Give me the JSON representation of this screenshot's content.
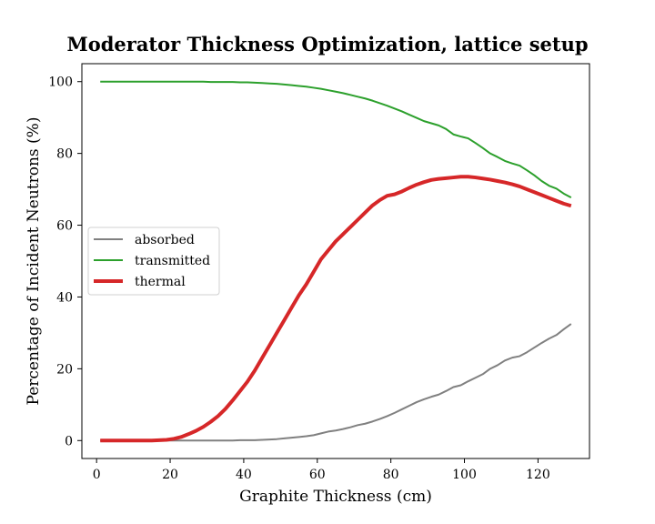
{
  "chart_data": {
    "type": "line",
    "title": "Moderator Thickness Optimization, lattice setup",
    "xlabel": "Graphite Thickness (cm)",
    "ylabel": "Percentage of Incident Neutrons (%)",
    "xlim": [
      -4,
      134
    ],
    "ylim": [
      -5,
      105
    ],
    "xticks": [
      0,
      20,
      40,
      60,
      80,
      100,
      120
    ],
    "yticks": [
      0,
      20,
      40,
      60,
      80,
      100
    ],
    "xtick_labels": [
      "0",
      "20",
      "40",
      "60",
      "80",
      "100",
      "120"
    ],
    "ytick_labels": [
      "0",
      "20",
      "40",
      "60",
      "80",
      "100"
    ],
    "grid": false,
    "legend_position": "center-left",
    "x": [
      1,
      3,
      5,
      7,
      9,
      11,
      13,
      15,
      17,
      19,
      21,
      23,
      25,
      27,
      29,
      31,
      33,
      35,
      37,
      39,
      41,
      43,
      45,
      47,
      49,
      51,
      53,
      55,
      57,
      59,
      61,
      63,
      65,
      67,
      69,
      71,
      73,
      75,
      77,
      79,
      81,
      83,
      85,
      87,
      89,
      91,
      93,
      95,
      97,
      99,
      101,
      103,
      105,
      107,
      109,
      111,
      113,
      115,
      117,
      119,
      121,
      123,
      125,
      127,
      129
    ],
    "series": [
      {
        "name": "absorbed",
        "color": "#808080",
        "line_width": 2,
        "values": [
          0,
          0,
          0,
          0,
          0,
          0,
          0,
          0,
          0,
          0,
          0,
          0,
          0,
          0,
          0,
          0,
          0,
          0,
          0,
          0.1,
          0.1,
          0.1,
          0.2,
          0.3,
          0.4,
          0.6,
          0.8,
          1.0,
          1.2,
          1.5,
          2.0,
          2.5,
          2.8,
          3.2,
          3.7,
          4.3,
          4.7,
          5.3,
          6.0,
          6.8,
          7.7,
          8.7,
          9.7,
          10.7,
          11.5,
          12.2,
          12.8,
          13.8,
          14.9,
          15.4,
          16.5,
          17.5,
          18.5,
          20.0,
          21.0,
          22.3,
          23.1,
          23.5,
          24.6,
          25.9,
          27.2,
          28.4,
          29.4,
          31.0,
          32.5
        ]
      },
      {
        "name": "transmitted",
        "color": "#2ca02c",
        "line_width": 2,
        "values": [
          100,
          100,
          100,
          100,
          100,
          100,
          100,
          100,
          100,
          100,
          100,
          100,
          100,
          100,
          100,
          99.9,
          99.9,
          99.9,
          99.9,
          99.8,
          99.8,
          99.7,
          99.6,
          99.5,
          99.4,
          99.2,
          99.0,
          98.8,
          98.6,
          98.3,
          98.0,
          97.6,
          97.2,
          96.8,
          96.3,
          95.8,
          95.3,
          94.7,
          94.0,
          93.3,
          92.5,
          91.7,
          90.8,
          89.9,
          89.0,
          88.4,
          87.8,
          86.8,
          85.3,
          84.7,
          84.2,
          82.9,
          81.5,
          80.0,
          79.0,
          77.9,
          77.2,
          76.6,
          75.3,
          73.9,
          72.3,
          71.0,
          70.2,
          68.8,
          67.7
        ]
      },
      {
        "name": "thermal",
        "color": "#d62728",
        "line_width": 4,
        "values": [
          0,
          0,
          0,
          0,
          0,
          0,
          0,
          0,
          0.1,
          0.2,
          0.5,
          1.0,
          1.8,
          2.7,
          3.8,
          5.2,
          6.8,
          8.8,
          11.2,
          13.8,
          16.4,
          19.5,
          23.0,
          26.5,
          30.0,
          33.5,
          37.0,
          40.5,
          43.5,
          47.0,
          50.5,
          53.0,
          55.5,
          57.5,
          59.5,
          61.5,
          63.5,
          65.5,
          67.0,
          68.2,
          68.6,
          69.4,
          70.4,
          71.3,
          72.0,
          72.6,
          72.9,
          73.1,
          73.3,
          73.5,
          73.5,
          73.3,
          73.0,
          72.7,
          72.3,
          71.9,
          71.4,
          70.8,
          70.0,
          69.2,
          68.4,
          67.6,
          66.8,
          66.0,
          65.4
        ]
      }
    ]
  }
}
